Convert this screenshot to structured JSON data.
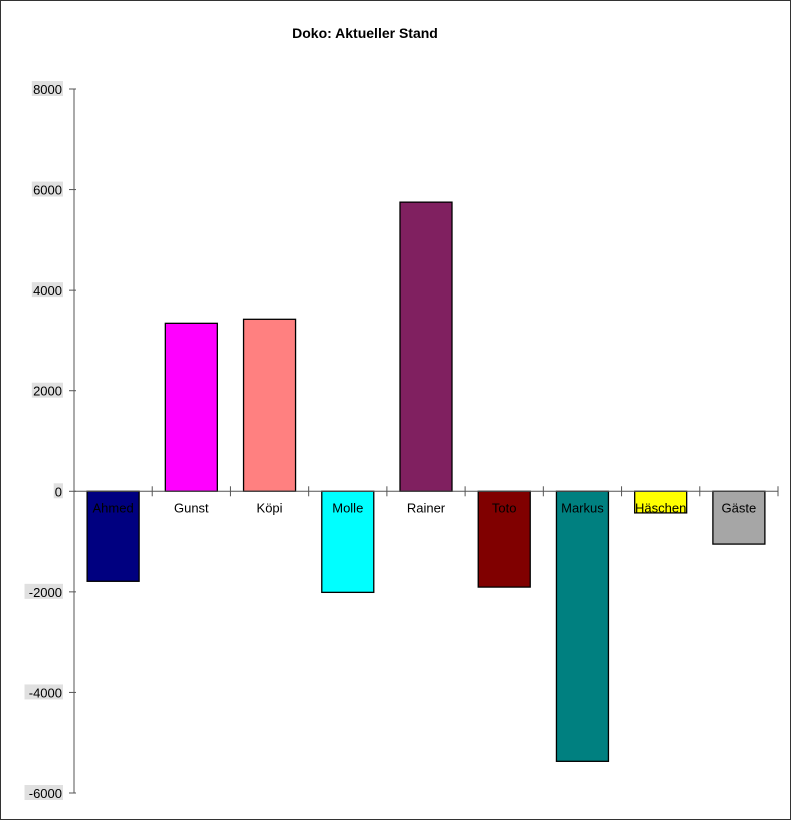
{
  "chart_data": {
    "type": "bar",
    "title": "Doko: Aktueller Stand",
    "xlabel": "",
    "ylabel": "",
    "categories": [
      "Ahmed",
      "Gunst",
      "Köpi",
      "Molle",
      "Rainer",
      "Toto",
      "Markus",
      "Häschen",
      "Gäste"
    ],
    "values": [
      -1790,
      3340,
      3420,
      -2010,
      5750,
      -1905,
      -5370,
      -430,
      -1050
    ],
    "colors": [
      "#000080",
      "#ff00ff",
      "#ff8080",
      "#00ffff",
      "#802060",
      "#800000",
      "#008080",
      "#ffff00",
      "#a6a6a6"
    ],
    "ylim": [
      -6000,
      8000
    ],
    "yticks": [
      8000,
      6000,
      4000,
      2000,
      0,
      -2000,
      -4000,
      -6000
    ],
    "grid": false,
    "legend": "none"
  }
}
